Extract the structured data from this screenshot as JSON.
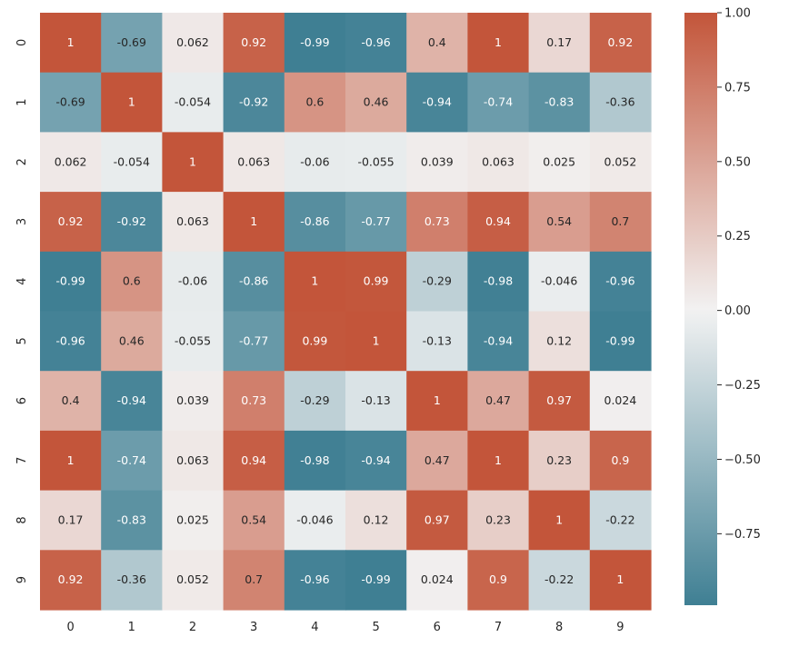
{
  "chart_data": {
    "type": "heatmap",
    "title": "",
    "xlabel": "",
    "ylabel": "",
    "x_labels": [
      "0",
      "1",
      "2",
      "3",
      "4",
      "5",
      "6",
      "7",
      "8",
      "9"
    ],
    "y_labels": [
      "0",
      "1",
      "2",
      "3",
      "4",
      "5",
      "6",
      "7",
      "8",
      "9"
    ],
    "values": [
      [
        1,
        -0.69,
        0.062,
        0.92,
        -0.99,
        -0.96,
        0.4,
        1,
        0.17,
        0.92
      ],
      [
        -0.69,
        1,
        -0.054,
        -0.92,
        0.6,
        0.46,
        -0.94,
        -0.74,
        -0.83,
        -0.36
      ],
      [
        0.062,
        -0.054,
        1,
        0.063,
        -0.06,
        -0.055,
        0.039,
        0.063,
        0.025,
        0.052
      ],
      [
        0.92,
        -0.92,
        0.063,
        1,
        -0.86,
        -0.77,
        0.73,
        0.94,
        0.54,
        0.7
      ],
      [
        -0.99,
        0.6,
        -0.06,
        -0.86,
        1,
        0.99,
        -0.29,
        -0.98,
        -0.046,
        -0.96
      ],
      [
        -0.96,
        0.46,
        -0.055,
        -0.77,
        0.99,
        1,
        -0.13,
        -0.94,
        0.12,
        -0.99
      ],
      [
        0.4,
        -0.94,
        0.039,
        0.73,
        -0.29,
        -0.13,
        1,
        0.47,
        0.97,
        0.024
      ],
      [
        1,
        -0.74,
        0.063,
        0.94,
        -0.98,
        -0.94,
        0.47,
        1,
        0.23,
        0.9
      ],
      [
        0.17,
        -0.83,
        0.025,
        0.54,
        -0.046,
        0.12,
        0.97,
        0.23,
        1,
        -0.22
      ],
      [
        0.92,
        -0.36,
        0.052,
        0.7,
        -0.96,
        -0.99,
        0.024,
        0.9,
        -0.22,
        1
      ]
    ],
    "annotations": [
      [
        "1",
        "-0.69",
        "0.062",
        "0.92",
        "-0.99",
        "-0.96",
        "0.4",
        "1",
        "0.17",
        "0.92"
      ],
      [
        "-0.69",
        "1",
        "-0.054",
        "-0.92",
        "0.6",
        "0.46",
        "-0.94",
        "-0.74",
        "-0.83",
        "-0.36"
      ],
      [
        "0.062",
        "-0.054",
        "1",
        "0.063",
        "-0.06",
        "-0.055",
        "0.039",
        "0.063",
        "0.025",
        "0.052"
      ],
      [
        "0.92",
        "-0.92",
        "0.063",
        "1",
        "-0.86",
        "-0.77",
        "0.73",
        "0.94",
        "0.54",
        "0.7"
      ],
      [
        "-0.99",
        "0.6",
        "-0.06",
        "-0.86",
        "1",
        "0.99",
        "-0.29",
        "-0.98",
        "-0.046",
        "-0.96"
      ],
      [
        "-0.96",
        "0.46",
        "-0.055",
        "-0.77",
        "0.99",
        "1",
        "-0.13",
        "-0.94",
        "0.12",
        "-0.99"
      ],
      [
        "0.4",
        "-0.94",
        "0.039",
        "0.73",
        "-0.29",
        "-0.13",
        "1",
        "0.47",
        "0.97",
        "0.024"
      ],
      [
        "1",
        "-0.74",
        "0.063",
        "0.94",
        "-0.98",
        "-0.94",
        "0.47",
        "1",
        "0.23",
        "0.9"
      ],
      [
        "0.17",
        "-0.83",
        "0.025",
        "0.54",
        "-0.046",
        "0.12",
        "0.97",
        "0.23",
        "1",
        "-0.22"
      ],
      [
        "0.92",
        "-0.36",
        "0.052",
        "0.7",
        "-0.96",
        "-0.99",
        "0.024",
        "0.9",
        "-0.22",
        "1"
      ]
    ],
    "vmin": -0.99,
    "vmax": 1.0,
    "colormap": {
      "negative": "#3f7f93",
      "center": "#f2f2f2",
      "positive": "#c3553a"
    },
    "colorbar": {
      "ticks": [
        1.0,
        0.75,
        0.5,
        0.25,
        0.0,
        -0.25,
        -0.5,
        -0.75
      ],
      "tick_labels": [
        "1.00",
        "0.75",
        "0.50",
        "0.25",
        "0.00",
        "−0.25",
        "−0.50",
        "−0.75"
      ]
    },
    "grid": false,
    "legend": "colorbar-right"
  }
}
